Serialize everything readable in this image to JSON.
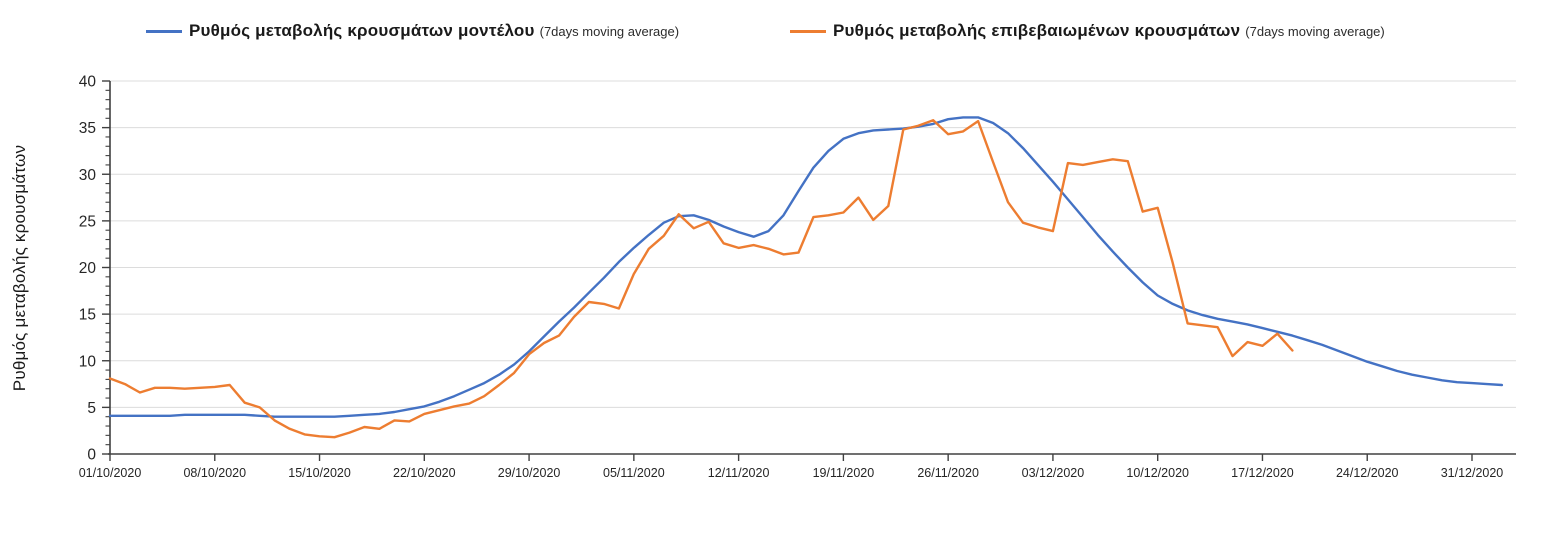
{
  "legend": [
    {
      "label": "Ρυθμός μεταβολής κρουσμάτων μοντέλου",
      "suffix": "(7days moving average)",
      "color": "#4472C4"
    },
    {
      "label": "Ρυθμός μεταβολής επιβεβαιωμένων κρουσμάτων",
      "suffix": "(7days moving average)",
      "color": "#ED7D31"
    }
  ],
  "y_axis": {
    "title": "Ρυθμός μεταβολής κρουσμάτων",
    "min": 0,
    "max": 40,
    "major_step": 5,
    "minor_step": 1,
    "tick_labels": [
      "0",
      "5",
      "10",
      "15",
      "20",
      "25",
      "30",
      "35",
      "40"
    ]
  },
  "x_axis": {
    "tick_labels": [
      "01/10/2020",
      "08/10/2020",
      "15/10/2020",
      "22/10/2020",
      "29/10/2020",
      "05/11/2020",
      "12/11/2020",
      "19/11/2020",
      "26/11/2020",
      "03/12/2020",
      "10/12/2020",
      "17/12/2020",
      "24/12/2020",
      "31/12/2020"
    ]
  },
  "chart_data": {
    "type": "line",
    "title": "",
    "ylabel": "Ρυθμός μεταβολής κρουσμάτων",
    "ylim": [
      0,
      40
    ],
    "grid": "horizontal-only",
    "legend_position": "top",
    "x_start_date": "01/10/2020",
    "x_step_days": 1,
    "x_tick_labels": [
      "01/10/2020",
      "08/10/2020",
      "15/10/2020",
      "22/10/2020",
      "29/10/2020",
      "05/11/2020",
      "12/11/2020",
      "19/11/2020",
      "26/11/2020",
      "03/12/2020",
      "10/12/2020",
      "17/12/2020",
      "24/12/2020",
      "31/12/2020"
    ],
    "series": [
      {
        "name": "Ρυθμός μεταβολής κρουσμάτων μοντέλου (7days moving average)",
        "color": "#4472C4",
        "start_day": 0,
        "end_date": "02/01/2021",
        "values": [
          4.1,
          4.1,
          4.1,
          4.1,
          4.1,
          4.2,
          4.2,
          4.2,
          4.2,
          4.2,
          4.1,
          4.0,
          4.0,
          4.0,
          4.0,
          4.0,
          4.1,
          4.2,
          4.3,
          4.5,
          4.8,
          5.1,
          5.6,
          6.2,
          6.9,
          7.6,
          8.5,
          9.6,
          11.0,
          12.6,
          14.2,
          15.7,
          17.3,
          18.9,
          20.6,
          22.1,
          23.5,
          24.8,
          25.5,
          25.6,
          25.1,
          24.4,
          23.8,
          23.3,
          23.9,
          25.6,
          28.2,
          30.7,
          32.5,
          33.8,
          34.4,
          34.7,
          34.8,
          34.9,
          35.1,
          35.4,
          35.9,
          36.1,
          36.1,
          35.5,
          34.4,
          32.8,
          31.0,
          29.2,
          27.3,
          25.4,
          23.5,
          21.7,
          20.0,
          18.4,
          17.0,
          16.1,
          15.4,
          14.9,
          14.5,
          14.2,
          13.9,
          13.5,
          13.1,
          12.7,
          12.2,
          11.7,
          11.1,
          10.5,
          9.9,
          9.4,
          8.9,
          8.5,
          8.2,
          7.9,
          7.7,
          7.6,
          7.5,
          7.4
        ]
      },
      {
        "name": "Ρυθμός μεταβολής επιβεβαιωμένων κρουσμάτων (7days moving average)",
        "color": "#ED7D31",
        "start_day": 0,
        "end_date": "19/12/2020",
        "values": [
          8.1,
          7.5,
          6.6,
          7.1,
          7.1,
          7.0,
          7.1,
          7.2,
          7.4,
          5.5,
          5.0,
          3.6,
          2.7,
          2.1,
          1.9,
          1.8,
          2.3,
          2.9,
          2.7,
          3.6,
          3.5,
          4.3,
          4.7,
          5.1,
          5.4,
          6.2,
          7.4,
          8.7,
          10.7,
          11.9,
          12.7,
          14.7,
          16.3,
          16.1,
          15.6,
          19.3,
          22.0,
          23.4,
          25.7,
          24.2,
          24.9,
          22.6,
          22.1,
          22.4,
          22.0,
          21.4,
          21.6,
          25.4,
          25.6,
          25.9,
          27.5,
          25.1,
          26.6,
          34.8,
          35.2,
          35.8,
          34.3,
          34.6,
          35.7,
          31.3,
          27.0,
          24.8,
          24.3,
          23.9,
          31.2,
          31.0,
          31.3,
          31.6,
          31.4,
          26.0,
          26.4,
          20.5,
          14.0,
          13.8,
          13.6,
          10.5,
          12.0,
          11.6,
          12.9,
          11.1
        ]
      }
    ]
  },
  "style": {
    "grid_color": "#DCDCDC",
    "axis_color": "#404040",
    "tick_label_color": "#262626"
  }
}
